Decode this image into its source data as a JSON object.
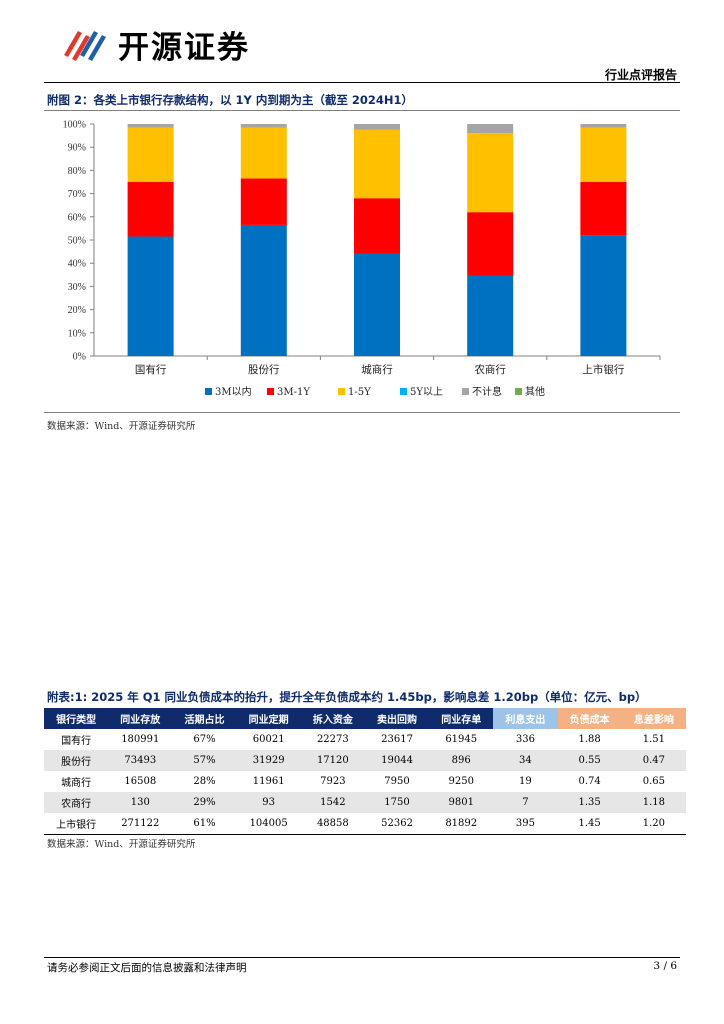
{
  "header": {
    "brand": "开源证券",
    "report_type": "行业点评报告"
  },
  "figure": {
    "title": "附图 2：各类上市银行存款结构，以 1Y 内到期为主（截至 2024H1）",
    "source": "数据来源：Wind、开源证券研究所"
  },
  "chart_data": {
    "type": "bar",
    "stacked": true,
    "categories": [
      "国有行",
      "股份行",
      "城商行",
      "农商行",
      "上市银行"
    ],
    "series": [
      {
        "name": "3M以内",
        "color": "#0070c0",
        "values": [
          51.5,
          56.5,
          44.0,
          34.5,
          52.0
        ]
      },
      {
        "name": "3M-1Y",
        "color": "#ff0000",
        "values": [
          23.5,
          20.0,
          24.0,
          27.5,
          23.0
        ]
      },
      {
        "name": "1-5Y",
        "color": "#ffc000",
        "values": [
          23.5,
          22.0,
          29.5,
          34.0,
          23.5
        ]
      },
      {
        "name": "5Y以上",
        "color": "#00b0f0",
        "values": [
          0.0,
          0.0,
          0.0,
          0.0,
          0.0
        ]
      },
      {
        "name": "不计息",
        "color": "#a5a5a5",
        "values": [
          1.5,
          1.5,
          2.5,
          4.0,
          1.5
        ]
      },
      {
        "name": "其他",
        "color": "#70ad47",
        "values": [
          0.0,
          0.0,
          0.0,
          0.0,
          0.0
        ]
      }
    ],
    "y_ticks": [
      "0%",
      "10%",
      "20%",
      "30%",
      "40%",
      "50%",
      "60%",
      "70%",
      "80%",
      "90%",
      "100%"
    ],
    "ylim": [
      0,
      100
    ],
    "grid": false,
    "legend_position": "bottom"
  },
  "table": {
    "title": "附表:1: 2025 年 Q1 同业负债成本的抬升，提升全年负债成本约 1.45bp，影响息差 1.20bp（单位：亿元、bp）",
    "headers": [
      "银行类型",
      "同业存放",
      "活期占比",
      "同业定期",
      "拆入资金",
      "卖出回购",
      "同业存单",
      "利息支出",
      "负债成本",
      "息差影响"
    ],
    "header_colors": [
      "#0f2b6b",
      "#0f2b6b",
      "#0f2b6b",
      "#0f2b6b",
      "#0f2b6b",
      "#0f2b6b",
      "#0f2b6b",
      "#9dc3e6",
      "#f4b183",
      "#f4b183"
    ],
    "rows": [
      [
        "国有行",
        "180991",
        "67%",
        "60021",
        "22273",
        "23617",
        "61945",
        "336",
        "1.88",
        "1.51"
      ],
      [
        "股份行",
        "73493",
        "57%",
        "31929",
        "17120",
        "19044",
        "896",
        "34",
        "0.55",
        "0.47"
      ],
      [
        "城商行",
        "16508",
        "28%",
        "11961",
        "7923",
        "7950",
        "9250",
        "19",
        "0.74",
        "0.65"
      ],
      [
        "农商行",
        "130",
        "29%",
        "93",
        "1542",
        "1750",
        "9801",
        "7",
        "1.35",
        "1.18"
      ],
      [
        "上市银行",
        "271122",
        "61%",
        "104005",
        "48858",
        "52362",
        "81892",
        "395",
        "1.45",
        "1.20"
      ]
    ],
    "source": "数据来源：Wind、开源证券研究所"
  },
  "footer": {
    "note": "请务必参阅正文后面的信息披露和法律声明",
    "page": "3 / 6"
  },
  "colors": {
    "title_navy": "#0f2b6b",
    "logo_red": "#e03a2f",
    "logo_blue": "#1f5fa8"
  }
}
